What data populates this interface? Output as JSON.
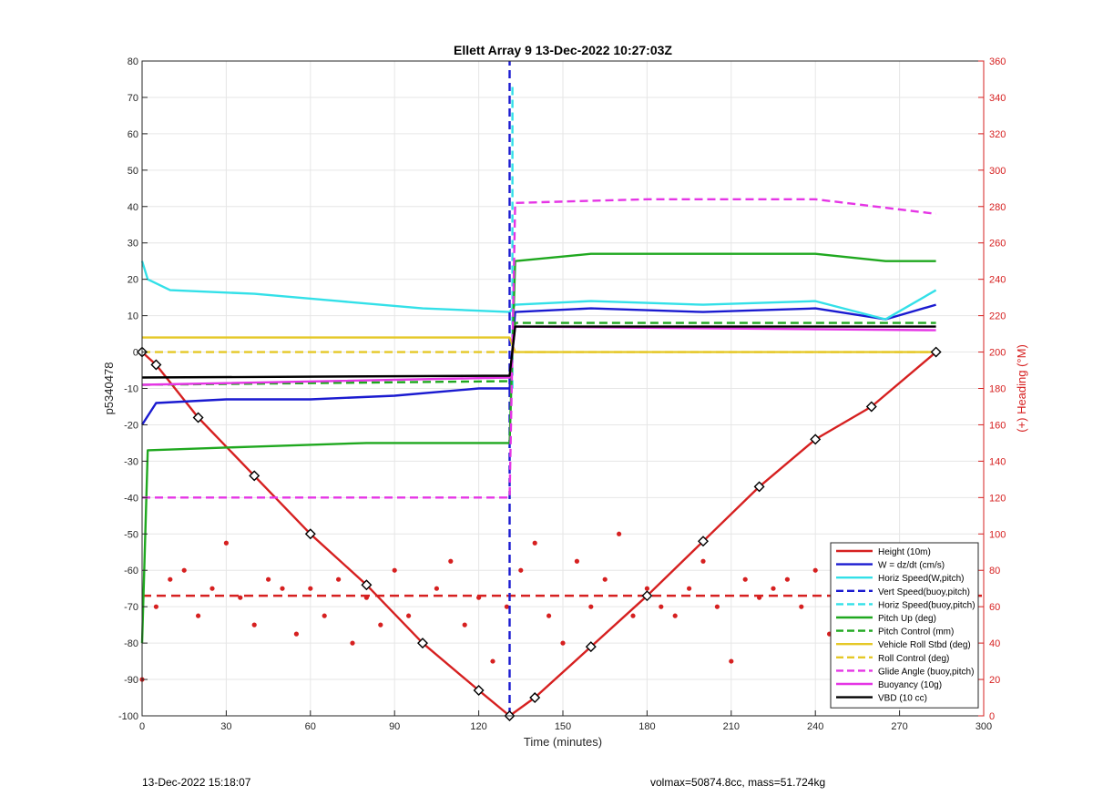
{
  "footer": {
    "timestamp": "13-Dec-2022 15:18:07",
    "vehicle_info": "volmax=50874.8cc, mass=51.724kg"
  },
  "chart_data": {
    "type": "line",
    "title": "Ellett Array 9 13-Dec-2022 10:27:03Z",
    "xlabel": "Time (minutes)",
    "ylabel": "p5340478",
    "ylabel_right": "(+) Heading (°M)",
    "xlim": [
      0,
      300
    ],
    "ylim": [
      -100,
      80
    ],
    "ylim_right": [
      0,
      360
    ],
    "xticks": [
      "0",
      "30",
      "60",
      "90",
      "120",
      "150",
      "180",
      "210",
      "240",
      "270",
      "300"
    ],
    "yticks": [
      "-100",
      "-90",
      "-80",
      "-70",
      "-60",
      "-50",
      "-40",
      "-30",
      "-20",
      "-10",
      "0",
      "10",
      "20",
      "30",
      "40",
      "50",
      "60",
      "70",
      "80"
    ],
    "yticks_right": [
      "0",
      "20",
      "40",
      "60",
      "80",
      "100",
      "120",
      "140",
      "160",
      "180",
      "200",
      "220",
      "240",
      "260",
      "280",
      "300",
      "320",
      "340",
      "360"
    ],
    "grid": true,
    "legend_position": "bottom-right",
    "colors": {
      "red": "#d62020",
      "blue": "#1a1ad0",
      "cyan": "#33e0e8",
      "green": "#1fa81f",
      "yellow": "#e5c827",
      "magenta": "#e535e5",
      "black": "#000000",
      "axis_right": "#d62020"
    },
    "series": [
      {
        "name": "Height (10m)",
        "color": "#d62020",
        "style": "solid",
        "x": [
          0,
          5,
          20,
          40,
          60,
          80,
          100,
          120,
          131,
          140,
          160,
          180,
          200,
          220,
          240,
          260,
          283
        ],
        "y": [
          0,
          -3.5,
          -18,
          -34,
          -50,
          -64,
          -80,
          -93,
          -100,
          -95,
          -81,
          -67,
          -52,
          -37,
          -24,
          -15,
          0
        ]
      },
      {
        "name": "W = dz/dt (cm/s)",
        "color": "#1a1ad0",
        "style": "solid",
        "x": [
          0,
          5,
          30,
          60,
          90,
          120,
          131,
          133,
          160,
          200,
          240,
          265,
          283
        ],
        "y": [
          -20,
          -14,
          -13,
          -13,
          -12,
          -10,
          -10,
          11,
          12,
          11,
          12,
          9,
          13
        ]
      },
      {
        "name": "Horiz Speed(W,pitch)",
        "color": "#33e0e8",
        "style": "solid",
        "x": [
          0,
          2,
          10,
          40,
          70,
          100,
          131,
          133,
          160,
          200,
          240,
          265,
          283
        ],
        "y": [
          25,
          20,
          17,
          16,
          14,
          12,
          11,
          13,
          14,
          13,
          14,
          9,
          17
        ]
      },
      {
        "name": "Vert Speed(buoy,pitch)",
        "color": "#1a1ad0",
        "style": "dashed",
        "x": [
          131,
          131
        ],
        "y": [
          -100,
          80
        ]
      },
      {
        "name": "Horiz Speed(buoy,pitch)",
        "color": "#33e0e8",
        "style": "dashed",
        "x": [
          132,
          132
        ],
        "y": [
          -10,
          73
        ]
      },
      {
        "name": "Pitch Up (deg)",
        "color": "#1fa81f",
        "style": "solid",
        "x": [
          0,
          2,
          40,
          80,
          120,
          131,
          133,
          160,
          200,
          240,
          265,
          283
        ],
        "y": [
          -80,
          -27,
          -26,
          -25,
          -25,
          -25,
          25,
          27,
          27,
          27,
          25,
          25
        ]
      },
      {
        "name": "Pitch Control (mm)",
        "color": "#1fa81f",
        "style": "dashed",
        "x": [
          0,
          131,
          133,
          283
        ],
        "y": [
          -9,
          -8,
          8,
          8
        ]
      },
      {
        "name": "Vehicle Roll Stbd (deg)",
        "color": "#e5c827",
        "style": "solid",
        "x": [
          0,
          30,
          60,
          90,
          131,
          133,
          180,
          230,
          283
        ],
        "y": [
          4,
          4,
          4,
          4,
          4,
          0,
          0,
          0,
          0
        ]
      },
      {
        "name": "Roll Control (deg)",
        "color": "#e5c827",
        "style": "dashed",
        "x": [
          0,
          131,
          133,
          283
        ],
        "y": [
          0,
          0,
          0,
          0
        ]
      },
      {
        "name": "Glide Angle (buoy,pitch)",
        "color": "#e535e5",
        "style": "dashed",
        "x": [
          0,
          40,
          90,
          131,
          133,
          180,
          240,
          283
        ],
        "y": [
          -40,
          -40,
          -40,
          -40,
          41,
          42,
          42,
          38
        ]
      },
      {
        "name": "Buoyancy (10g)",
        "color": "#e535e5",
        "style": "solid",
        "x": [
          0,
          131,
          133,
          283
        ],
        "y": [
          -9,
          -7,
          7,
          6
        ]
      },
      {
        "name": "VBD (10 cc)",
        "color": "#000000",
        "style": "solid",
        "x": [
          0,
          131,
          133,
          283
        ],
        "y": [
          -7,
          -6.5,
          7,
          7
        ]
      }
    ],
    "heading": {
      "name": "Heading (°M)",
      "color": "#d62020",
      "mean": 66,
      "x": [
        0,
        5,
        10,
        15,
        20,
        25,
        30,
        35,
        40,
        45,
        50,
        55,
        60,
        65,
        70,
        75,
        80,
        85,
        90,
        95,
        100,
        105,
        110,
        115,
        120,
        125,
        130,
        135,
        140,
        145,
        150,
        155,
        160,
        165,
        170,
        175,
        180,
        185,
        190,
        195,
        200,
        205,
        210,
        215,
        220,
        225,
        230,
        235,
        240,
        245,
        250,
        255,
        260,
        265,
        270,
        275,
        280
      ],
      "y": [
        20,
        60,
        75,
        80,
        55,
        70,
        95,
        65,
        50,
        75,
        70,
        45,
        70,
        55,
        75,
        40,
        65,
        50,
        80,
        55,
        40,
        70,
        85,
        50,
        65,
        30,
        60,
        80,
        95,
        55,
        40,
        85,
        60,
        75,
        100,
        55,
        70,
        60,
        55,
        70,
        85,
        60,
        30,
        75,
        65,
        70,
        75,
        60,
        80,
        45,
        75,
        60,
        70,
        55,
        65,
        75,
        60
      ]
    },
    "legend": [
      "Height (10m)",
      "W = dz/dt (cm/s)",
      "Horiz Speed(W,pitch)",
      "Vert Speed(buoy,pitch)",
      "Horiz Speed(buoy,pitch)",
      "Pitch Up (deg)",
      "Pitch Control (mm)",
      "Vehicle Roll Stbd (deg)",
      "Roll Control (deg)",
      "Glide Angle (buoy,pitch)",
      "Buoyancy (10g)",
      "VBD (10 cc)"
    ]
  }
}
